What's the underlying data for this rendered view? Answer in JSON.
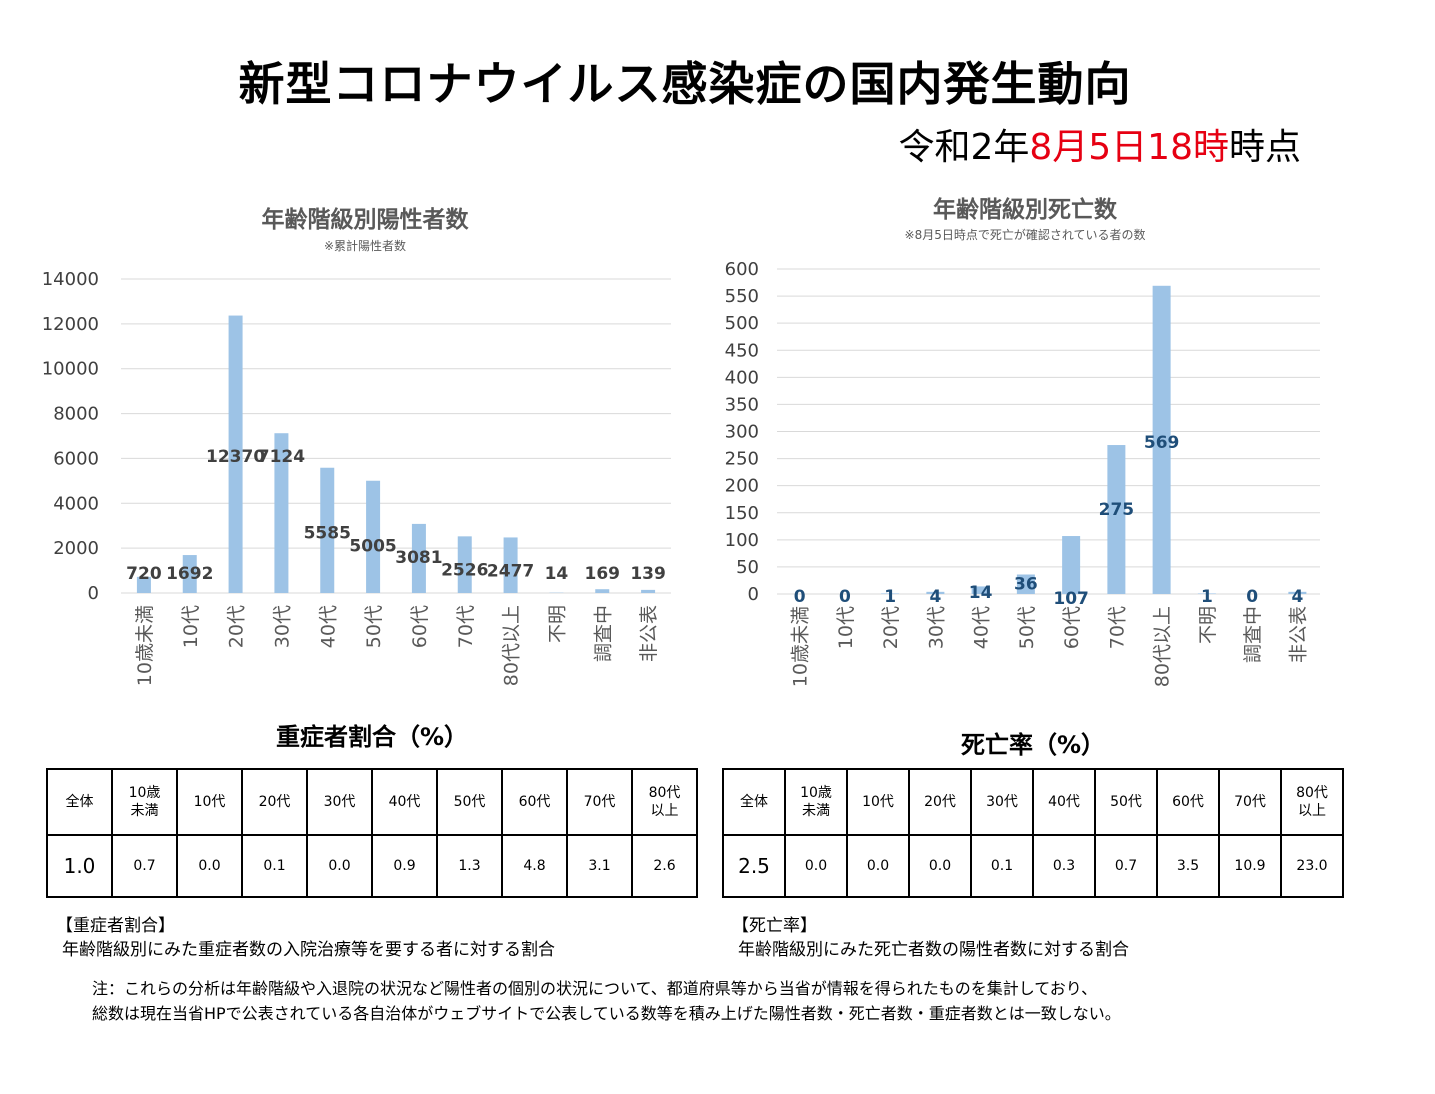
{
  "header": {
    "title": "新型コロナウイルス感染症の国内発生動向",
    "ts_prefix": "令和2年",
    "ts_highlight": "8月5日18時",
    "ts_suffix": "時点"
  },
  "chart_data": [
    {
      "type": "bar",
      "title": "年齢階級別陽性者数",
      "subtitle": "※累計陽性者数",
      "categories": [
        "10歳未満",
        "10代",
        "20代",
        "30代",
        "40代",
        "50代",
        "60代",
        "70代",
        "80代以上",
        "不明",
        "調査中",
        "非公表"
      ],
      "values": [
        720,
        1692,
        12370,
        7124,
        5585,
        5005,
        3081,
        2526,
        2477,
        14,
        169,
        139
      ],
      "ylim": [
        0,
        14000
      ],
      "yticks": [
        0,
        2000,
        4000,
        6000,
        8000,
        10000,
        12000,
        14000
      ],
      "grid": true,
      "bar_color": "#9dc3e6",
      "label_color": "#404040"
    },
    {
      "type": "bar",
      "title": "年齢階級別死亡数",
      "subtitle": "※8月5日時点で死亡が確認されている者の数",
      "categories": [
        "10歳未満",
        "10代",
        "20代",
        "30代",
        "40代",
        "50代",
        "60代",
        "70代",
        "80代以上",
        "不明",
        "調査中",
        "非公表"
      ],
      "values": [
        0,
        0,
        1,
        4,
        14,
        36,
        107,
        275,
        569,
        1,
        0,
        4
      ],
      "ylim": [
        0,
        600
      ],
      "yticks": [
        0,
        50,
        100,
        150,
        200,
        250,
        300,
        350,
        400,
        450,
        500,
        550,
        600
      ],
      "grid": true,
      "bar_color": "#9dc3e6",
      "label_color": "#1f4e79"
    }
  ],
  "severe": {
    "title": "重症者割合（%）",
    "headers": [
      "全体",
      "10歳\n未満",
      "10代",
      "20代",
      "30代",
      "40代",
      "50代",
      "60代",
      "70代",
      "80代\n以上"
    ],
    "values": [
      "1.0",
      "0.7",
      "0.0",
      "0.1",
      "0.0",
      "0.9",
      "1.3",
      "4.8",
      "3.1",
      "2.6"
    ],
    "note_head": "【重症者割合】",
    "note_body": "年齢階級別にみた重症者数の入院治療等を要する者に対する割合"
  },
  "mortality": {
    "title": "死亡率（%）",
    "headers": [
      "全体",
      "10歳\n未満",
      "10代",
      "20代",
      "30代",
      "40代",
      "50代",
      "60代",
      "70代",
      "80代\n以上"
    ],
    "values": [
      "2.5",
      "0.0",
      "0.0",
      "0.0",
      "0.1",
      "0.3",
      "0.7",
      "3.5",
      "10.9",
      "23.0"
    ],
    "note_head": "【死亡率】",
    "note_body": "年齢階級別にみた死亡者数の陽性者数に対する割合"
  },
  "footnote": {
    "line1": "注：これらの分析は年齢階級や入退院の状況など陽性者の個別の状況について、都道府県等から当省が情報を得られたものを集計しており、",
    "line2": "総数は現在当省HPで公表されている各自治体がウェブサイトで公表している数等を積み上げた陽性者数・死亡者数・重症者数とは一致しない。"
  }
}
